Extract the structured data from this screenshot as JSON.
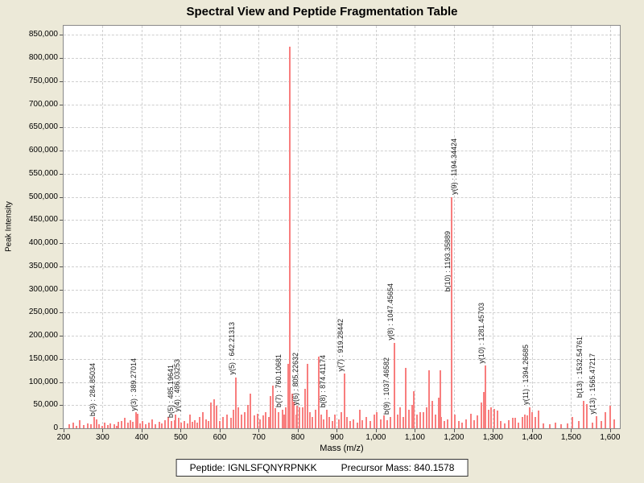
{
  "title": "Spectral View and Peptide Fragmentation Table",
  "chart_data": {
    "type": "bar",
    "subtype": "mass-spectrum-stick-plot",
    "title": "Spectral View and Peptide Fragmentation Table",
    "xlabel": "Mass (m/z)",
    "ylabel": "Peak Intensity",
    "xlim": [
      200,
      1625
    ],
    "ylim": [
      0,
      870000
    ],
    "x_ticks": [
      200,
      300,
      400,
      500,
      600,
      700,
      800,
      900,
      1000,
      1100,
      1200,
      1300,
      1400,
      1500,
      1600
    ],
    "y_ticks": [
      0,
      50000,
      100000,
      150000,
      200000,
      250000,
      300000,
      350000,
      400000,
      450000,
      500000,
      550000,
      600000,
      650000,
      700000,
      750000,
      800000,
      850000
    ],
    "grid": true,
    "legend": "none",
    "labeled_peaks": [
      {
        "label": "b(3) : 284.85034",
        "mz": 284.85034,
        "intensity": 20000
      },
      {
        "label": "y(3) : 389.27014",
        "mz": 389.27014,
        "intensity": 32000
      },
      {
        "label": "b(5) : 485.19641",
        "mz": 485.19641,
        "intensity": 18000
      },
      {
        "label": "y(4) : 486.03253",
        "mz": 486.03253,
        "intensity": 30000,
        "dx": 7
      },
      {
        "label": "y(5) : 642.21313",
        "mz": 642.21313,
        "intensity": 110000
      },
      {
        "label": "b(7) : 760.10681",
        "mz": 760.10681,
        "intensity": 40000
      },
      {
        "label": "y(6) : 805.22632",
        "mz": 805.22632,
        "intensity": 45000
      },
      {
        "label": "b(8) : 874.41174",
        "mz": 874.41174,
        "intensity": 40000
      },
      {
        "label": "y(7) : 919.28442",
        "mz": 919.28442,
        "intensity": 118000
      },
      {
        "label": "b(9) : 1037.46582",
        "mz": 1037.46582,
        "intensity": 25000
      },
      {
        "label": "y(8) : 1047.45654",
        "mz": 1047.45654,
        "intensity": 185000
      },
      {
        "label": "b(10) : 1193.35889",
        "mz": 1193.35889,
        "intensity": 290000
      },
      {
        "label": "y(9) : 1194.34424",
        "mz": 1194.34424,
        "intensity": 500000,
        "dx": 8
      },
      {
        "label": "y(10) : 1281.45703",
        "mz": 1281.45703,
        "intensity": 135000
      },
      {
        "label": "y(11) : 1394.26685",
        "mz": 1394.26685,
        "intensity": 45000
      },
      {
        "label": "b(13) : 1532.54761",
        "mz": 1532.54761,
        "intensity": 60000
      },
      {
        "label": "y(13) : 1565.47217",
        "mz": 1565.47217,
        "intensity": 26000
      }
    ],
    "unlabeled_peaks": [
      [
        215,
        8000
      ],
      [
        224,
        12000
      ],
      [
        233,
        6000
      ],
      [
        241,
        18000
      ],
      [
        252,
        7000
      ],
      [
        262,
        10000
      ],
      [
        270,
        9000
      ],
      [
        278,
        24000
      ],
      [
        291,
        8000
      ],
      [
        298,
        6000
      ],
      [
        305,
        12000
      ],
      [
        313,
        7000
      ],
      [
        320,
        10000
      ],
      [
        329,
        8000
      ],
      [
        336,
        6000
      ],
      [
        341,
        14000
      ],
      [
        348,
        16000
      ],
      [
        356,
        22000
      ],
      [
        364,
        12000
      ],
      [
        371,
        18000
      ],
      [
        378,
        14000
      ],
      [
        385,
        34000
      ],
      [
        395,
        10000
      ],
      [
        402,
        16000
      ],
      [
        410,
        8000
      ],
      [
        418,
        12000
      ],
      [
        427,
        20000
      ],
      [
        436,
        9000
      ],
      [
        445,
        14000
      ],
      [
        452,
        11000
      ],
      [
        460,
        18000
      ],
      [
        468,
        25000
      ],
      [
        476,
        15000
      ],
      [
        494,
        22000
      ],
      [
        501,
        12000
      ],
      [
        509,
        16000
      ],
      [
        517,
        10000
      ],
      [
        523,
        30000
      ],
      [
        530,
        14000
      ],
      [
        536,
        18000
      ],
      [
        543,
        12000
      ],
      [
        549,
        25000
      ],
      [
        556,
        35000
      ],
      [
        565,
        20000
      ],
      [
        571,
        15000
      ],
      [
        577,
        55000
      ],
      [
        585,
        62000
      ],
      [
        592,
        48000
      ],
      [
        600,
        15000
      ],
      [
        609,
        25000
      ],
      [
        618,
        30000
      ],
      [
        628,
        22000
      ],
      [
        635,
        40000
      ],
      [
        648,
        45000
      ],
      [
        655,
        30000
      ],
      [
        663,
        35000
      ],
      [
        672,
        50000
      ],
      [
        679,
        75000
      ],
      [
        688,
        28000
      ],
      [
        696,
        32000
      ],
      [
        704,
        20000
      ],
      [
        711,
        28000
      ],
      [
        718,
        35000
      ],
      [
        725,
        25000
      ],
      [
        731,
        69000
      ],
      [
        737,
        92000
      ],
      [
        743,
        43000
      ],
      [
        750,
        35000
      ],
      [
        765,
        30000
      ],
      [
        770,
        45000
      ],
      [
        775,
        140000
      ],
      [
        780,
        825000
      ],
      [
        785,
        74000
      ],
      [
        790,
        57000
      ],
      [
        795,
        30000
      ],
      [
        799,
        48000
      ],
      [
        813,
        45000
      ],
      [
        818,
        85000
      ],
      [
        824,
        140000
      ],
      [
        831,
        35000
      ],
      [
        838,
        25000
      ],
      [
        845,
        40000
      ],
      [
        853,
        155000
      ],
      [
        860,
        30000
      ],
      [
        867,
        20000
      ],
      [
        881,
        25000
      ],
      [
        888,
        15000
      ],
      [
        896,
        30000
      ],
      [
        905,
        20000
      ],
      [
        912,
        35000
      ],
      [
        926,
        25000
      ],
      [
        934,
        15000
      ],
      [
        943,
        20000
      ],
      [
        952,
        12000
      ],
      [
        958,
        40000
      ],
      [
        966,
        18000
      ],
      [
        975,
        25000
      ],
      [
        985,
        15000
      ],
      [
        995,
        30000
      ],
      [
        1003,
        35000
      ],
      [
        1012,
        20000
      ],
      [
        1021,
        28000
      ],
      [
        1030,
        18000
      ],
      [
        1055,
        30000
      ],
      [
        1063,
        45000
      ],
      [
        1070,
        25000
      ],
      [
        1077,
        130000
      ],
      [
        1085,
        40000
      ],
      [
        1092,
        50000
      ],
      [
        1098,
        80000
      ],
      [
        1106,
        30000
      ],
      [
        1113,
        35000
      ],
      [
        1122,
        35000
      ],
      [
        1130,
        45000
      ],
      [
        1136,
        125000
      ],
      [
        1144,
        60000
      ],
      [
        1152,
        30000
      ],
      [
        1160,
        66000
      ],
      [
        1165,
        125000
      ],
      [
        1168,
        25000
      ],
      [
        1175,
        15000
      ],
      [
        1183,
        20000
      ],
      [
        1203,
        30000
      ],
      [
        1212,
        15000
      ],
      [
        1221,
        12000
      ],
      [
        1232,
        20000
      ],
      [
        1243,
        31000
      ],
      [
        1252,
        18000
      ],
      [
        1261,
        28000
      ],
      [
        1270,
        55000
      ],
      [
        1276,
        78000
      ],
      [
        1288,
        40000
      ],
      [
        1296,
        45000
      ],
      [
        1304,
        42000
      ],
      [
        1311,
        38000
      ],
      [
        1320,
        15000
      ],
      [
        1330,
        10000
      ],
      [
        1340,
        18000
      ],
      [
        1350,
        22000
      ],
      [
        1356,
        22000
      ],
      [
        1365,
        12000
      ],
      [
        1375,
        25000
      ],
      [
        1382,
        30000
      ],
      [
        1388,
        28000
      ],
      [
        1400,
        35000
      ],
      [
        1408,
        25000
      ],
      [
        1417,
        38000
      ],
      [
        1430,
        10000
      ],
      [
        1445,
        8000
      ],
      [
        1460,
        12000
      ],
      [
        1475,
        8000
      ],
      [
        1490,
        10000
      ],
      [
        1504,
        25000
      ],
      [
        1520,
        15000
      ],
      [
        1541,
        52000
      ],
      [
        1555,
        12000
      ],
      [
        1578,
        15000
      ],
      [
        1587,
        35000
      ],
      [
        1600,
        48000
      ],
      [
        1610,
        20000
      ]
    ]
  },
  "footer": {
    "peptide": "Peptide: IGNLSFQNYRPNKK",
    "precursor": "Precursor Mass: 840.1578"
  },
  "colors": {
    "background": "#ECE9D8",
    "plot_background": "#FFFFFF",
    "peak": "#F87E7E",
    "grid": "#CFCFCF",
    "axis_border": "#8A8A8A",
    "text": "#000000"
  }
}
